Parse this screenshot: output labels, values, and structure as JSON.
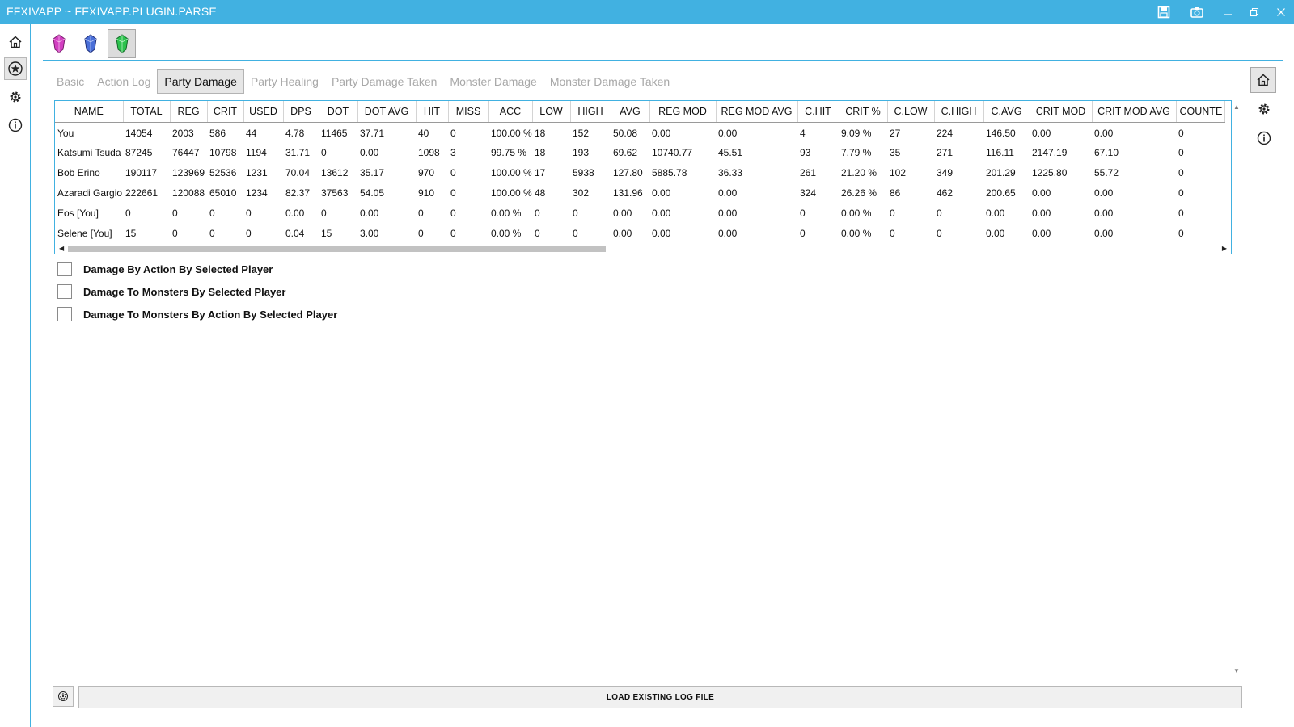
{
  "window": {
    "title": "FFXIVAPP ~ FFXIVAPP.PLUGIN.PARSE",
    "bar_color": "#41b1e1"
  },
  "titlebar_icons": [
    "save-icon",
    "camera-icon",
    "minimize-icon",
    "restore-icon",
    "close-icon"
  ],
  "left_nav": [
    "home-icon",
    "plugins-icon",
    "settings-icon",
    "info-icon"
  ],
  "plugin_icons": [
    {
      "name": "pink-crystal-icon",
      "color": "#d23fc1"
    },
    {
      "name": "blue-crystal-icon",
      "color": "#4a6fd8"
    },
    {
      "name": "green-crystal-icon",
      "color": "#2cc24d"
    }
  ],
  "tabs": [
    "Basic",
    "Action Log",
    "Party Damage",
    "Party Healing",
    "Party Damage Taken",
    "Monster Damage",
    "Monster Damage Taken"
  ],
  "active_tab": "Party Damage",
  "table": {
    "columns": [
      "NAME",
      "TOTAL",
      "REG",
      "CRIT",
      "USED",
      "DPS",
      "DOT",
      "DOT AVG",
      "HIT",
      "MISS",
      "ACC",
      "LOW",
      "HIGH",
      "AVG",
      "REG MOD",
      "REG MOD AVG",
      "C.HIT",
      "CRIT %",
      "C.LOW",
      "C.HIGH",
      "C.AVG",
      "CRIT MOD",
      "CRIT MOD AVG",
      "COUNTE"
    ],
    "rows": [
      [
        "You",
        "14054",
        "2003",
        "586",
        "44",
        "4.78",
        "11465",
        "37.71",
        "40",
        "0",
        "100.00 %",
        "18",
        "152",
        "50.08",
        "0.00",
        "0.00",
        "4",
        "9.09 %",
        "27",
        "224",
        "146.50",
        "0.00",
        "0.00",
        "0"
      ],
      [
        "Katsumi Tsuda",
        "87245",
        "76447",
        "10798",
        "1194",
        "31.71",
        "0",
        "0.00",
        "1098",
        "3",
        "99.75 %",
        "18",
        "193",
        "69.62",
        "10740.77",
        "45.51",
        "93",
        "7.79 %",
        "35",
        "271",
        "116.11",
        "2147.19",
        "67.10",
        "0"
      ],
      [
        "Bob Erino",
        "190117",
        "123969",
        "52536",
        "1231",
        "70.04",
        "13612",
        "35.17",
        "970",
        "0",
        "100.00 %",
        "17",
        "5938",
        "127.80",
        "5885.78",
        "36.33",
        "261",
        "21.20 %",
        "102",
        "349",
        "201.29",
        "1225.80",
        "55.72",
        "0"
      ],
      [
        "Azaradi Gargio",
        "222661",
        "120088",
        "65010",
        "1234",
        "82.37",
        "37563",
        "54.05",
        "910",
        "0",
        "100.00 %",
        "48",
        "302",
        "131.96",
        "0.00",
        "0.00",
        "324",
        "26.26 %",
        "86",
        "462",
        "200.65",
        "0.00",
        "0.00",
        "0"
      ],
      [
        "Eos [You]",
        "0",
        "0",
        "0",
        "0",
        "0.00",
        "0",
        "0.00",
        "0",
        "0",
        "0.00 %",
        "0",
        "0",
        "0.00",
        "0.00",
        "0.00",
        "0",
        "0.00 %",
        "0",
        "0",
        "0.00",
        "0.00",
        "0.00",
        "0"
      ],
      [
        "Selene [You]",
        "15",
        "0",
        "0",
        "0",
        "0.04",
        "15",
        "3.00",
        "0",
        "0",
        "0.00 %",
        "0",
        "0",
        "0.00",
        "0.00",
        "0.00",
        "0",
        "0.00 %",
        "0",
        "0",
        "0.00",
        "0.00",
        "0.00",
        "0"
      ]
    ]
  },
  "options": [
    {
      "label": "Damage By Action By Selected Player",
      "checked": false
    },
    {
      "label": "Damage To Monsters By Selected Player",
      "checked": false
    },
    {
      "label": "Damage To Monsters By Action By Selected Player",
      "checked": false
    }
  ],
  "right_panel": [
    "home-icon",
    "settings-icon",
    "info-icon"
  ],
  "bottom": {
    "load_label": "LOAD EXISTING LOG FILE"
  }
}
